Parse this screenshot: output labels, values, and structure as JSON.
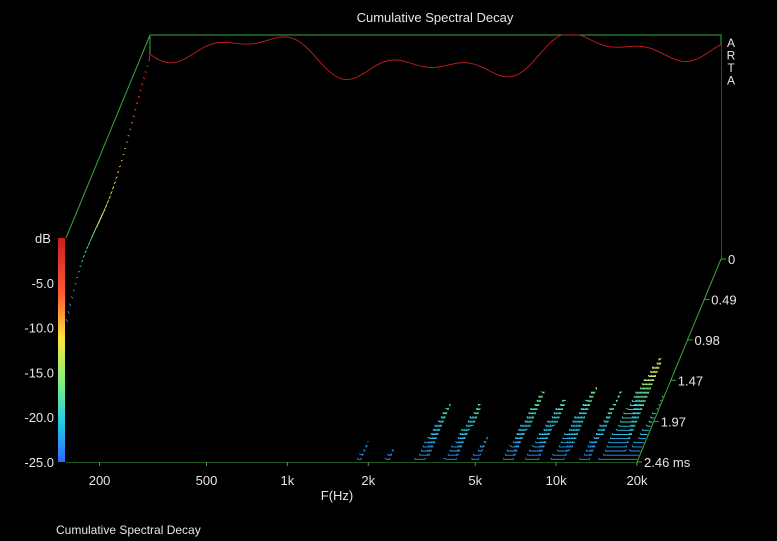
{
  "chart_data": {
    "type": "waterfall",
    "title": "Cumulative Spectral Decay",
    "footer_caption": "Cumulative Spectral Decay",
    "brand_letters": [
      "A",
      "R",
      "T",
      "A"
    ],
    "xlabel": "F(Hz)",
    "x_scale": "log",
    "x_range": [
      150,
      20000
    ],
    "x_ticks": [
      {
        "value": 200,
        "label": "200"
      },
      {
        "value": 500,
        "label": "500"
      },
      {
        "value": 1000,
        "label": "1k"
      },
      {
        "value": 2000,
        "label": "2k"
      },
      {
        "value": 5000,
        "label": "5k"
      },
      {
        "value": 10000,
        "label": "10k"
      },
      {
        "value": 20000,
        "label": "20k"
      }
    ],
    "z_unit": "dB",
    "z_range": [
      -25,
      0
    ],
    "z_ticks": [
      {
        "value": -5,
        "label": "-5.0"
      },
      {
        "value": -10,
        "label": "-10.0"
      },
      {
        "value": -15,
        "label": "-15.0"
      },
      {
        "value": -20,
        "label": "-20.0"
      },
      {
        "value": -25,
        "label": "-25.0"
      }
    ],
    "z_unit_label": "dB",
    "time_unit": "ms",
    "time_range": [
      0,
      2.46
    ],
    "time_ticks": [
      {
        "value": 0,
        "label": "0"
      },
      {
        "value": 0.49,
        "label": "0.49"
      },
      {
        "value": 0.98,
        "label": "0.98"
      },
      {
        "value": 1.47,
        "label": "1.47"
      },
      {
        "value": 1.97,
        "label": "1.97"
      },
      {
        "value": 2.46,
        "label": "2.46 ms"
      }
    ],
    "slice_count": 50,
    "colormap": [
      "#2a8cff",
      "#27c9e6",
      "#5fe8a0",
      "#d8f060",
      "#ffe640",
      "#ff9a30",
      "#ff4030",
      "#c81e1e"
    ],
    "frame_color": "#3aa63a"
  }
}
